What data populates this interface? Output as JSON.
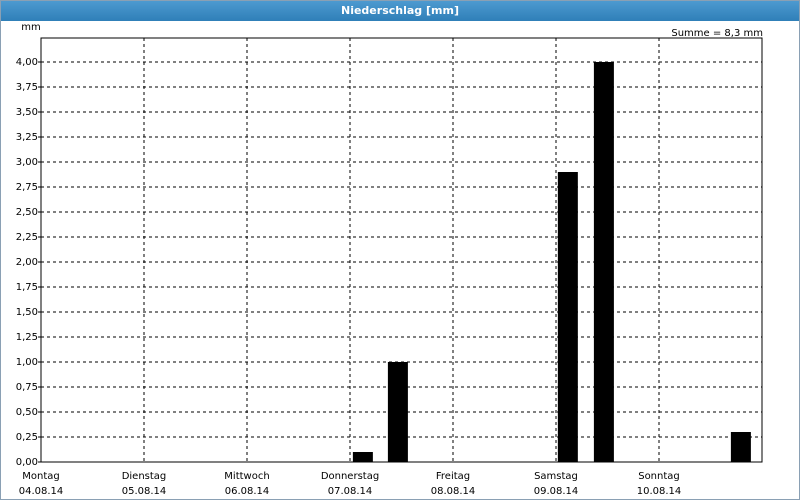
{
  "window_title": "Niederschlag [mm]",
  "chart_data": {
    "type": "bar",
    "y_unit": "mm",
    "annotation": "Summe = 8,3 mm",
    "x": [
      3.125,
      3.465,
      5.115,
      5.465,
      6.795
    ],
    "values": [
      0.1,
      1.0,
      2.9,
      4.0,
      0.3
    ],
    "color": "#000000",
    "xlim": [
      0,
      7
    ],
    "xticks": [
      0,
      1,
      2,
      3,
      4,
      5,
      6
    ],
    "day_names": [
      "Montag",
      "Dienstag",
      "Mittwoch",
      "Donnerstag",
      "Freitag",
      "Samstag",
      "Sonntag"
    ],
    "dates": [
      "04.08.14",
      "05.08.14",
      "06.08.14",
      "07.08.14",
      "08.08.14",
      "09.08.14",
      "10.08.14"
    ],
    "ylim": [
      0,
      4.24
    ],
    "yticks": [
      {
        "value": 0,
        "label": "0,00"
      },
      {
        "value": 0.25,
        "label": "0,25"
      },
      {
        "value": 0.5,
        "label": "0,50"
      },
      {
        "value": 0.75,
        "label": "0,75"
      },
      {
        "value": 1,
        "label": "1,00"
      },
      {
        "value": 1.25,
        "label": "1,25"
      },
      {
        "value": 1.5,
        "label": "1,50"
      },
      {
        "value": 1.75,
        "label": "1,75"
      },
      {
        "value": 2,
        "label": "2,00"
      },
      {
        "value": 2.25,
        "label": "2,25"
      },
      {
        "value": 2.5,
        "label": "2,50"
      },
      {
        "value": 2.75,
        "label": "2,75"
      },
      {
        "value": 3,
        "label": "3,00"
      },
      {
        "value": 3.25,
        "label": "3,25"
      },
      {
        "value": 3.5,
        "label": "3,50"
      },
      {
        "value": 3.75,
        "label": "3,75"
      },
      {
        "value": 4,
        "label": "4,00"
      }
    ],
    "grid": true
  }
}
